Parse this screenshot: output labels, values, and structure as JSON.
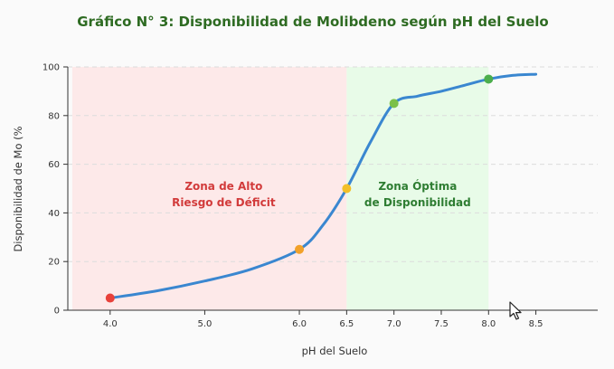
{
  "chart_data": {
    "type": "line",
    "title": "Gráfico N° 3: Disponibilidad de Molibdeno según pH del Suelo",
    "xlabel": "pH del Suelo",
    "ylabel": "Disponibilidad de Mo (%",
    "xlim": [
      3.6,
      9.0
    ],
    "ylim": [
      0,
      100
    ],
    "x_ticks": [
      "4.0",
      "5.0",
      "6.0",
      "6.5",
      "7.0",
      "7.5",
      "8.0",
      "8.5"
    ],
    "x_tick_values": [
      4.0,
      5.0,
      6.0,
      6.5,
      7.0,
      7.5,
      8.0,
      8.5
    ],
    "y_ticks": [
      "0",
      "20",
      "40",
      "60",
      "80",
      "100"
    ],
    "y_tick_values": [
      0,
      20,
      40,
      60,
      80,
      100
    ],
    "grid": "horizontal dashed",
    "series": [
      {
        "x": [
          4.0,
          4.5,
          5.0,
          5.5,
          6.0,
          6.25,
          6.5,
          6.75,
          7.0,
          7.25,
          7.5,
          7.75,
          8.0,
          8.25,
          8.5
        ],
        "values": [
          5,
          8,
          12,
          17,
          25,
          35,
          50,
          69,
          85,
          88,
          90,
          92.5,
          95,
          96.5,
          97
        ],
        "color": "#3a87d0"
      }
    ],
    "points": [
      {
        "x": 4.0,
        "y": 5,
        "color": "#e8413a"
      },
      {
        "x": 6.0,
        "y": 25,
        "color": "#f2a12a"
      },
      {
        "x": 6.5,
        "y": 50,
        "color": "#f2c029"
      },
      {
        "x": 7.0,
        "y": 85,
        "color": "#7cc048"
      },
      {
        "x": 8.0,
        "y": 95,
        "color": "#4cae4c"
      }
    ],
    "zones": [
      {
        "x_start": 3.6,
        "x_end": 6.5,
        "color": "#fde9e9",
        "label_lines": [
          "Zona de Alto",
          "Riesgo de Déficit"
        ],
        "label_color": "#d23b3b",
        "label_x": 5.2,
        "label_y": 48
      },
      {
        "x_start": 6.5,
        "x_end": 8.0,
        "color": "#e8fbe8",
        "label_lines": [
          "Zona Óptima",
          "de Disponibilidad"
        ],
        "label_color": "#2e7d32",
        "label_x": 7.25,
        "label_y": 48
      }
    ]
  },
  "colors": {
    "title": "#2e6b22",
    "grid": "#dcdcdc",
    "axis": "#333333"
  },
  "icons": {
    "cursor": "mouse-pointer-icon"
  }
}
